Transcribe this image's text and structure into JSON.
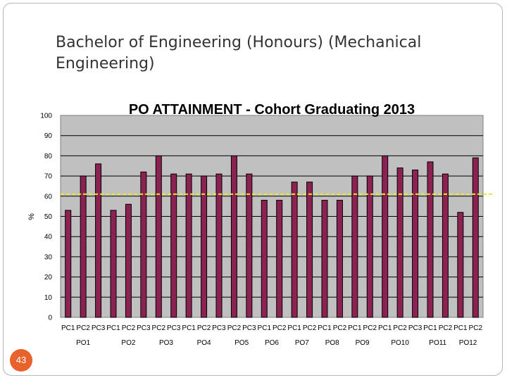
{
  "slide": {
    "title": "Bachelor of Engineering (Honours) (Mechanical Engineering)",
    "page_number": "43"
  },
  "colors": {
    "plot_background": "#c0c0c0",
    "bar_fill": "#8b2252",
    "target_line": "#e6e62e",
    "page_badge": "#e8632c"
  },
  "chart_data": {
    "type": "bar",
    "title": "PO ATTAINMENT - Cohort Graduating 2013",
    "ylabel": "%",
    "xlabel": "",
    "ylim": [
      0,
      100
    ],
    "yticks": [
      0,
      10,
      20,
      30,
      40,
      50,
      60,
      70,
      80,
      90,
      100
    ],
    "grid": true,
    "legend": "none",
    "target_line_value": 61,
    "categories": [
      "PC1",
      "PC2",
      "PC3",
      "PC1",
      "PC2",
      "PC3",
      "PC2",
      "PC3",
      "PC1",
      "PC2",
      "PC3",
      "PC2",
      "PC3",
      "PC1",
      "PC2",
      "PC1",
      "PC2",
      "PC1",
      "PC2",
      "PC1",
      "PC2",
      "PC1",
      "PC2",
      "PC3",
      "PC1",
      "PC2",
      "PC1",
      "PC2"
    ],
    "values": [
      53,
      70,
      76,
      53,
      56,
      72,
      80,
      71,
      71,
      70,
      71,
      80,
      71,
      58,
      58,
      67,
      67,
      58,
      58,
      70,
      70,
      80,
      74,
      73,
      77,
      71,
      52,
      79
    ],
    "groups": [
      {
        "label": "PO1",
        "count": 3
      },
      {
        "label": "PO2",
        "count": 3
      },
      {
        "label": "PO3",
        "count": 2
      },
      {
        "label": "PO4",
        "count": 3
      },
      {
        "label": "PO5",
        "count": 2
      },
      {
        "label": "PO6",
        "count": 2
      },
      {
        "label": "PO7",
        "count": 2
      },
      {
        "label": "PO8",
        "count": 2
      },
      {
        "label": "PO9",
        "count": 2
      },
      {
        "label": "PO10",
        "count": 3
      },
      {
        "label": "PO11",
        "count": 2
      },
      {
        "label": "PO12",
        "count": 2
      }
    ]
  }
}
